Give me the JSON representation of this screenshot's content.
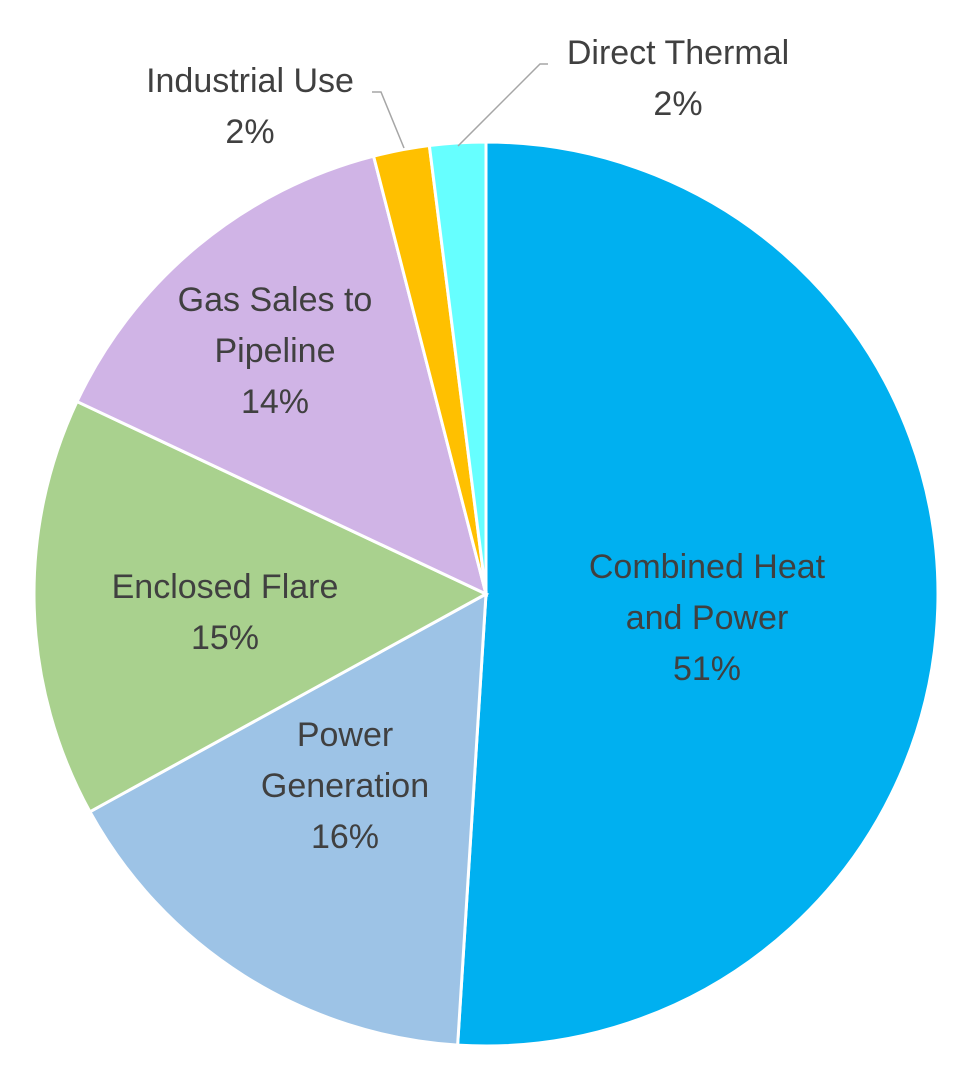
{
  "chart_data": {
    "type": "pie",
    "start_angle_deg": 0,
    "direction": "clockwise",
    "slices": [
      {
        "name": "Combined Heat and Power",
        "label_lines": [
          "Combined Heat",
          "and Power"
        ],
        "value": 51,
        "display": "51%",
        "color": "#00B0F0"
      },
      {
        "name": "Power Generation",
        "label_lines": [
          "Power",
          "Generation"
        ],
        "value": 16,
        "display": "16%",
        "color": "#9DC3E6"
      },
      {
        "name": "Enclosed Flare",
        "label_lines": [
          "Enclosed Flare"
        ],
        "value": 15,
        "display": "15%",
        "color": "#A9D18E"
      },
      {
        "name": "Gas Sales to Pipeline",
        "label_lines": [
          "Gas Sales to",
          "Pipeline"
        ],
        "value": 14,
        "display": "14%",
        "color": "#D0B4E6"
      },
      {
        "name": "Industrial Use",
        "label_lines": [
          "Industrial Use"
        ],
        "value": 2,
        "display": "2%",
        "color": "#FFC000"
      },
      {
        "name": "Direct Thermal",
        "label_lines": [
          "Direct Thermal"
        ],
        "value": 2,
        "display": "2%",
        "color": "#66FFFF"
      }
    ],
    "legend": "none",
    "data_labels": "category name and percentage"
  }
}
